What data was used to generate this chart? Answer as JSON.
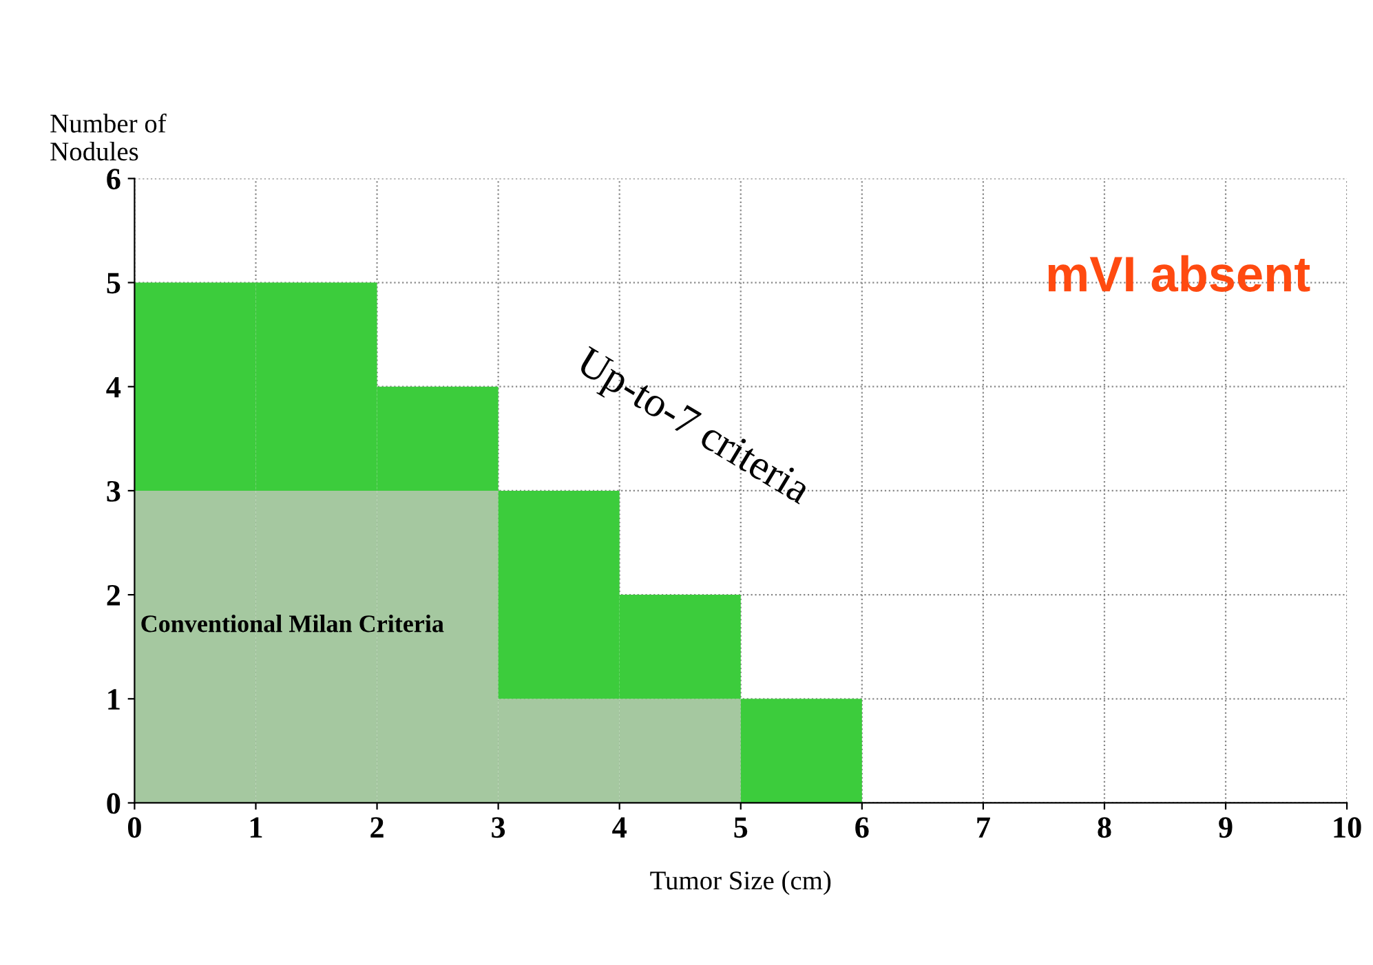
{
  "chart_data": {
    "type": "bar",
    "stacked": true,
    "x": [
      0.5,
      1.5,
      2.5,
      3.5,
      4.5,
      5.5
    ],
    "series": [
      {
        "name": "Conventional Milan Criteria",
        "color": "#a5c8a0",
        "values": [
          3,
          3,
          3,
          1,
          1,
          0
        ]
      },
      {
        "name": "Up-to-7 criteria",
        "color": "#3ccc3c",
        "values": [
          2,
          2,
          1,
          2,
          1,
          1
        ]
      }
    ],
    "xlabel": "Tumor Size (cm)",
    "ylabel": "Number of\nNodules",
    "xlim": [
      0,
      10
    ],
    "xticks": [
      0,
      1,
      2,
      3,
      4,
      5,
      6,
      7,
      8,
      9,
      10
    ],
    "ylim": [
      0,
      6
    ],
    "yticks": [
      0,
      1,
      2,
      3,
      4,
      5,
      6
    ],
    "grid": true,
    "legend": false,
    "annotations": [
      "mVI absent"
    ]
  }
}
